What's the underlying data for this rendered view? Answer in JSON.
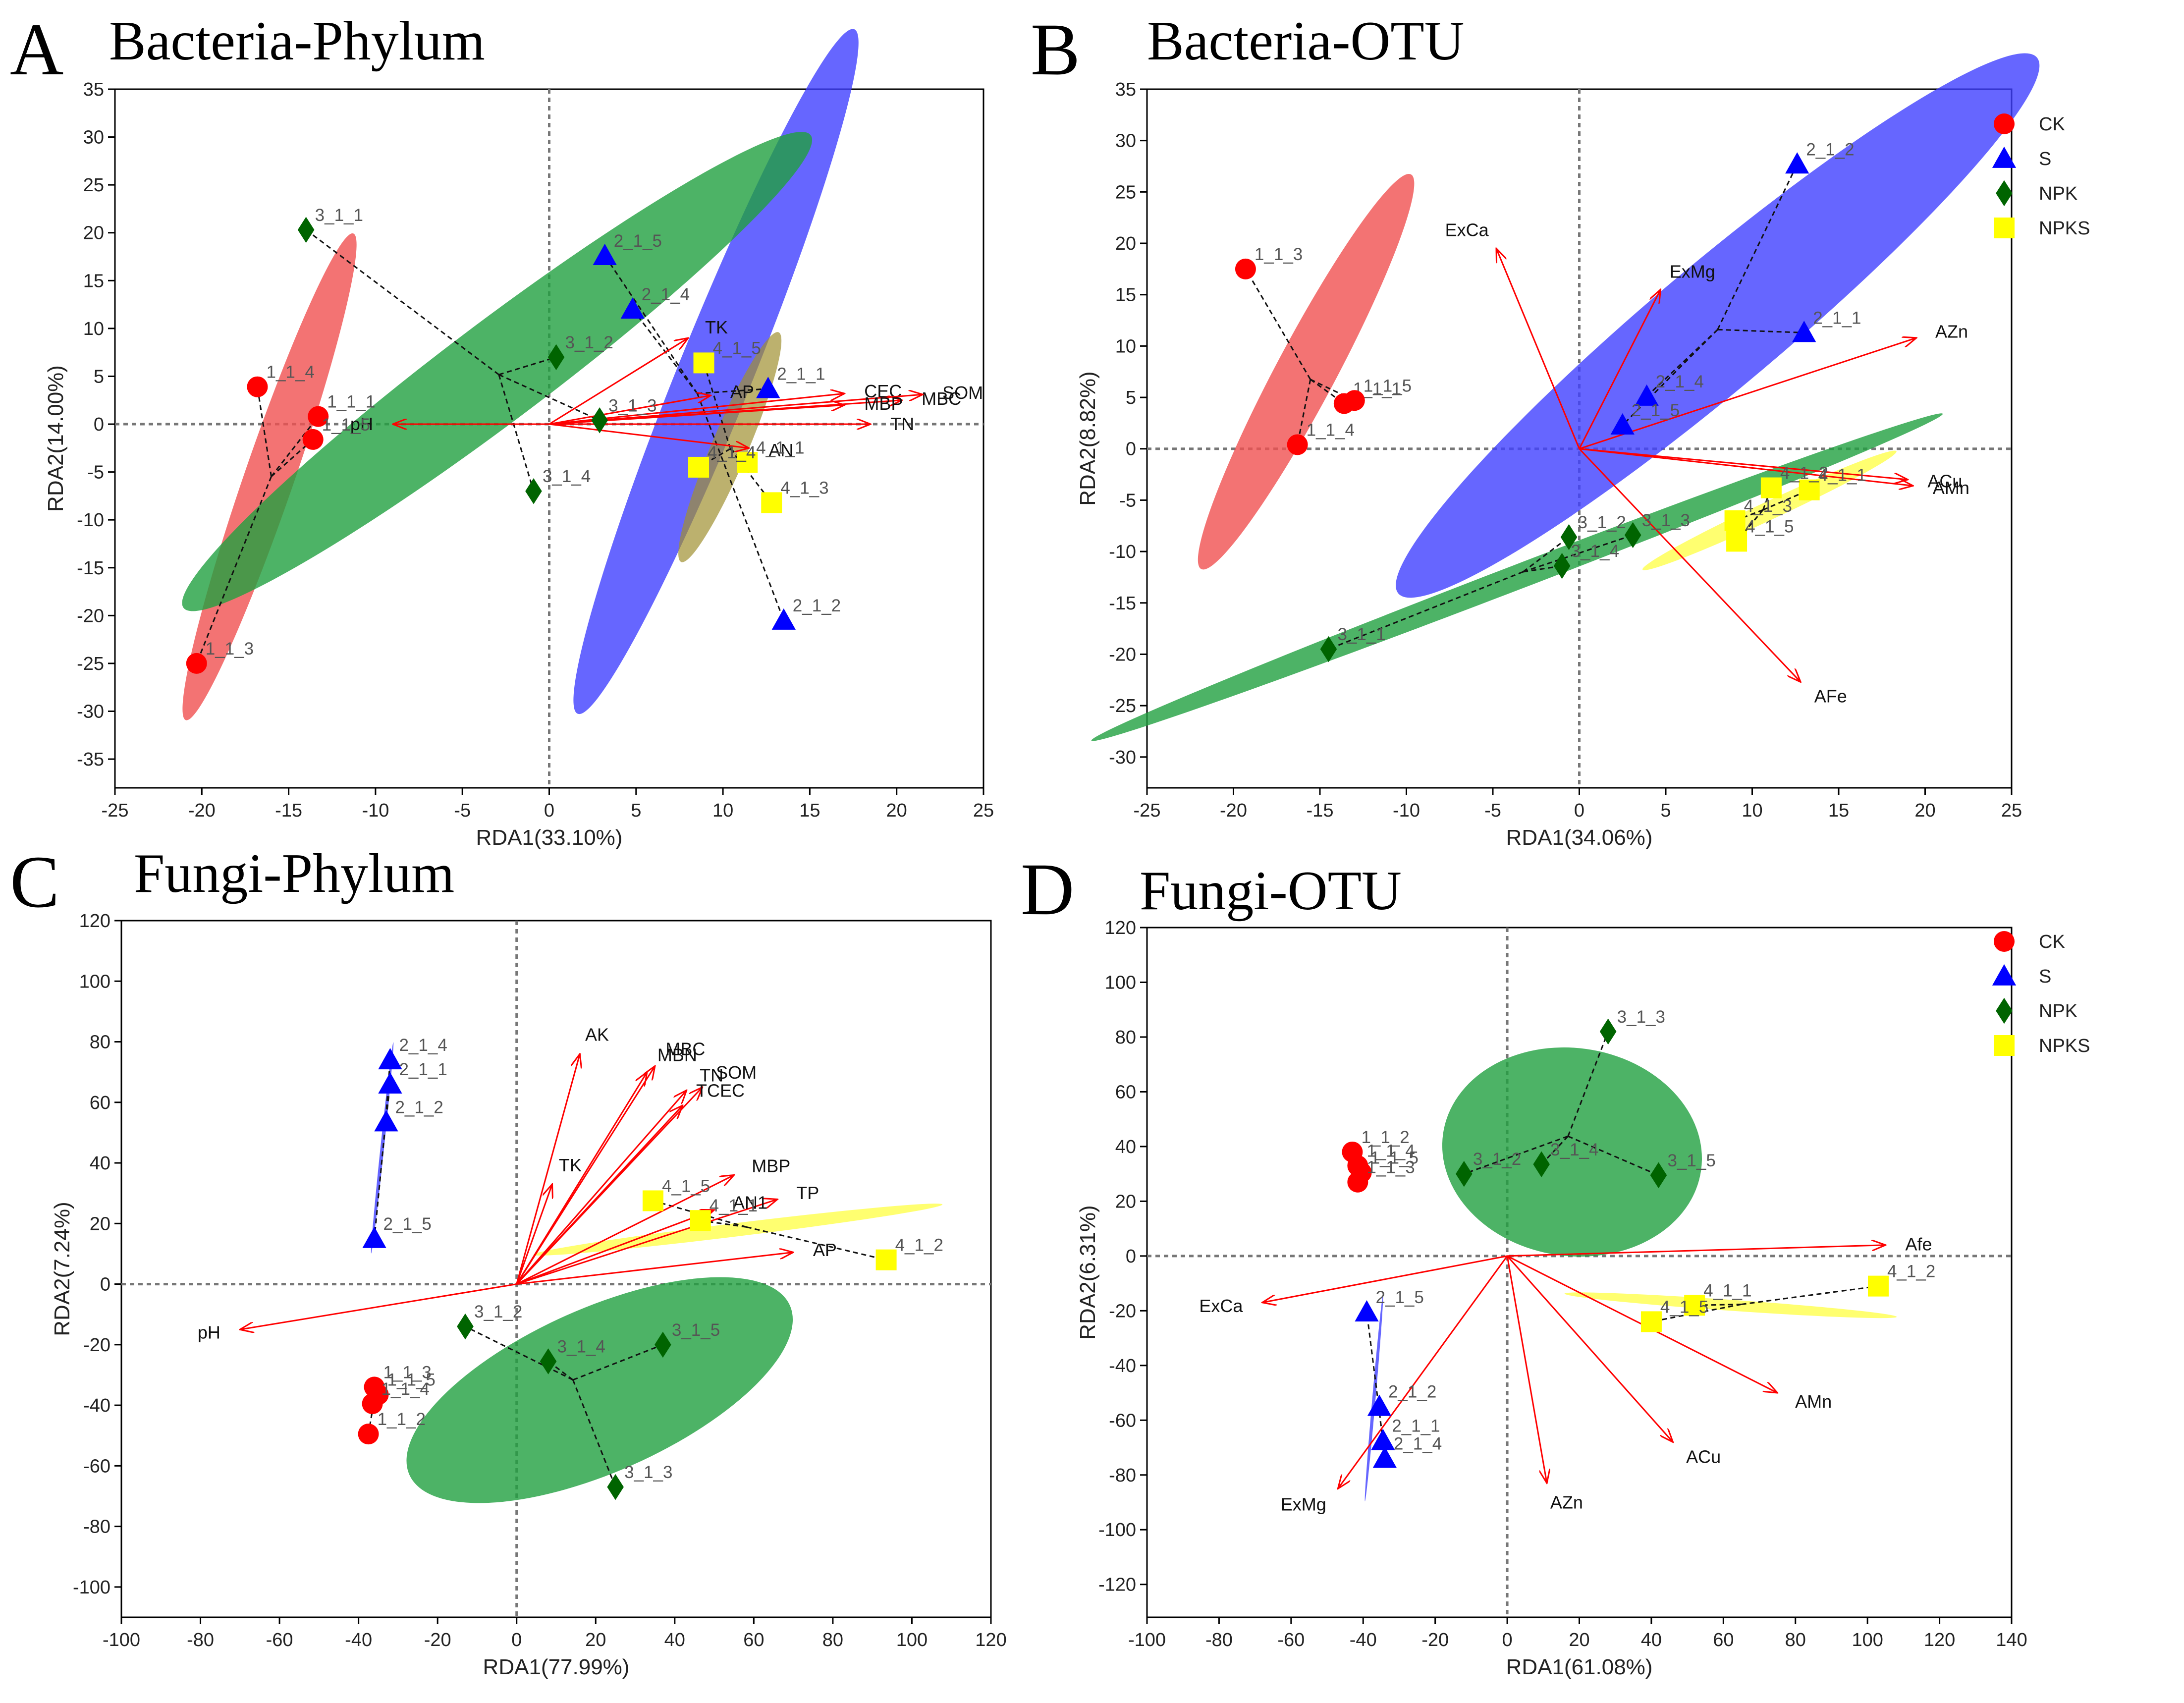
{
  "figure": {
    "description_free": true
  },
  "legend": {
    "entries": [
      {
        "name": "CK",
        "color": "#ff0000",
        "marker": "circle"
      },
      {
        "name": "S",
        "color": "#0000ff",
        "marker": "triangle"
      },
      {
        "name": "NPK",
        "color": "#006400",
        "marker": "diamond"
      },
      {
        "name": "NPKS",
        "color": "#ffff00",
        "marker": "square"
      }
    ]
  },
  "colors": {
    "arrow": "#ff0000",
    "CK_fill": "#f05050",
    "S_fill": "#4040ff",
    "NPK_fill": "#20a040",
    "NPKS_fill_A": "#a09030",
    "NPKS_fill": "#ffff33"
  },
  "chart_data": [
    {
      "type": "scatter",
      "panel": "A",
      "title": "Bacteria-Phylum",
      "xlabel": "RDA1(33.10%)",
      "ylabel": "RDA2(14.00%)",
      "xlim": [
        -25,
        25
      ],
      "ylim": [
        -38,
        35
      ],
      "xticks": [
        -25,
        -20,
        -15,
        -10,
        -5,
        0,
        5,
        10,
        15,
        20,
        25
      ],
      "yticks": [
        -35,
        -30,
        -25,
        -20,
        -15,
        -10,
        -5,
        0,
        5,
        10,
        15,
        20,
        25,
        30,
        35
      ],
      "show_legend": false,
      "groups": [
        {
          "name": "CK",
          "points": [
            {
              "label": "1_1_1",
              "x": -13.3,
              "y": 0.8
            },
            {
              "label": "1_1_3",
              "x": -20.3,
              "y": -25.0
            },
            {
              "label": "1_1_4",
              "x": -16.8,
              "y": 3.9
            },
            {
              "label": "1_1_5",
              "x": -13.6,
              "y": -1.6
            }
          ],
          "ellipse": {
            "cx": -16.1,
            "cy": -5.5,
            "rx": 17.5,
            "ry": 2.6,
            "angle": -71
          }
        },
        {
          "name": "S",
          "points": [
            {
              "label": "2_1_1",
              "x": 12.6,
              "y": 3.7
            },
            {
              "label": "2_1_2",
              "x": 13.5,
              "y": -20.5
            },
            {
              "label": "2_1_4",
              "x": 4.8,
              "y": 12.0
            },
            {
              "label": "2_1_5",
              "x": 3.2,
              "y": 17.6
            }
          ],
          "ellipse": {
            "cx": 9.6,
            "cy": 5.5,
            "rx": 24.0,
            "ry": 3.9,
            "angle": -68
          }
        },
        {
          "name": "NPK",
          "points": [
            {
              "label": "3_1_1",
              "x": -14.0,
              "y": 20.3
            },
            {
              "label": "3_1_2",
              "x": 0.4,
              "y": 7.0
            },
            {
              "label": "3_1_3",
              "x": 2.9,
              "y": 0.4
            },
            {
              "label": "3_1_4",
              "x": -0.9,
              "y": -7.0
            }
          ],
          "ellipse": {
            "cx": -3.0,
            "cy": 5.5,
            "rx": 20.0,
            "ry": 5.2,
            "angle": -37
          }
        },
        {
          "name": "NPKS",
          "points": [
            {
              "label": "4_1_5",
              "x": 8.9,
              "y": 6.4
            },
            {
              "label": "4_1_1",
              "x": 11.4,
              "y": -4.0
            },
            {
              "label": "4_1_3",
              "x": 12.8,
              "y": -8.2
            },
            {
              "label": "4_1_4",
              "x": 8.6,
              "y": -4.5
            }
          ],
          "ellipse": {
            "cx": 10.4,
            "cy": -2.4,
            "rx": 8.0,
            "ry": 1.9,
            "angle": -67
          }
        }
      ],
      "vectors": [
        {
          "label": "pH",
          "x": -9.0,
          "y": 0.0
        },
        {
          "label": "TK",
          "x": 8.0,
          "y": 9.0
        },
        {
          "label": "AP",
          "x": 9.3,
          "y": 3.0
        },
        {
          "label": "CEC",
          "x": 17.0,
          "y": 3.2
        },
        {
          "label": "MBC",
          "x": 20.3,
          "y": 2.5
        },
        {
          "label": "SOM",
          "x": 21.5,
          "y": 3.1
        },
        {
          "label": "MBP",
          "x": 17.0,
          "y": 2.0
        },
        {
          "label": "TN",
          "x": 18.5,
          "y": 0.0
        },
        {
          "label": "AN",
          "x": 11.5,
          "y": -2.5
        }
      ]
    },
    {
      "type": "scatter",
      "panel": "B",
      "title": "Bacteria-OTU",
      "xlabel": "RDA1(34.06%)",
      "ylabel": "RDA2(8.82%)",
      "xlim": [
        -25,
        25
      ],
      "ylim": [
        -33,
        35
      ],
      "xticks": [
        -25,
        -20,
        -15,
        -10,
        -5,
        0,
        5,
        10,
        15,
        20,
        25
      ],
      "yticks": [
        -30,
        -25,
        -20,
        -15,
        -10,
        -5,
        0,
        5,
        10,
        15,
        20,
        25,
        30,
        35
      ],
      "show_legend": true,
      "groups": [
        {
          "name": "CK",
          "points": [
            {
              "label": "1_1_3",
              "x": -19.3,
              "y": 17.5
            },
            {
              "label": "1_1_4",
              "x": -16.3,
              "y": 0.4
            },
            {
              "label": "1_1_1",
              "x": -13.6,
              "y": 4.4
            },
            {
              "label": "1_1_5",
              "x": -13.0,
              "y": 4.7
            }
          ],
          "ellipse": {
            "cx": -15.8,
            "cy": 7.5,
            "rx": 13.0,
            "ry": 2.9,
            "angle": -62
          }
        },
        {
          "name": "S",
          "points": [
            {
              "label": "2_1_2",
              "x": 12.6,
              "y": 27.7
            },
            {
              "label": "2_1_1",
              "x": 13.0,
              "y": 11.3
            },
            {
              "label": "2_1_4",
              "x": 3.9,
              "y": 5.1
            },
            {
              "label": "2_1_5",
              "x": 2.5,
              "y": 2.3
            }
          ],
          "ellipse": {
            "cx": 8.0,
            "cy": 12.0,
            "rx": 21.0,
            "ry": 6.1,
            "angle": -40
          }
        },
        {
          "name": "NPK",
          "points": [
            {
              "label": "3_1_1",
              "x": -14.5,
              "y": -19.5
            },
            {
              "label": "3_1_2",
              "x": -0.6,
              "y": -8.6
            },
            {
              "label": "3_1_3",
              "x": 3.1,
              "y": -8.4
            },
            {
              "label": "3_1_4",
              "x": -1.0,
              "y": -11.4
            }
          ],
          "ellipse": {
            "cx": -3.6,
            "cy": -12.5,
            "rx": 23.0,
            "ry": 1.2,
            "angle": -21
          }
        },
        {
          "name": "NPKS",
          "points": [
            {
              "label": "4_1_1",
              "x": 13.3,
              "y": -4.0
            },
            {
              "label": "4_1_2",
              "x": 11.1,
              "y": -3.8
            },
            {
              "label": "4_1_3",
              "x": 9.0,
              "y": -7.0
            },
            {
              "label": "4_1_5",
              "x": 9.1,
              "y": -9.0
            }
          ],
          "ellipse": {
            "cx": 11.0,
            "cy": -6.0,
            "rx": 7.0,
            "ry": 0.9,
            "angle": -25
          }
        }
      ],
      "vectors": [
        {
          "label": "ExCa",
          "x": -4.8,
          "y": 19.5
        },
        {
          "label": "ExMg",
          "x": 4.7,
          "y": 15.5
        },
        {
          "label": "AZn",
          "x": 19.5,
          "y": 10.8
        },
        {
          "label": "ACu",
          "x": 19.0,
          "y": -3.0
        },
        {
          "label": "AMn",
          "x": 19.3,
          "y": -3.6
        },
        {
          "label": "AFe",
          "x": 12.8,
          "y": -22.7
        }
      ]
    },
    {
      "type": "scatter",
      "panel": "C",
      "title": "Fungi-Phylum",
      "xlabel": "RDA1(77.99%)",
      "ylabel": "RDA2(7.24%)",
      "xlim": [
        -100,
        120
      ],
      "ylim": [
        -110,
        120
      ],
      "xticks": [
        -100,
        -80,
        -60,
        -40,
        -20,
        0,
        20,
        40,
        60,
        80,
        100,
        120
      ],
      "yticks": [
        -100,
        -80,
        -60,
        -40,
        -20,
        0,
        20,
        40,
        60,
        80,
        100,
        120
      ],
      "show_legend": false,
      "groups": [
        {
          "name": "CK",
          "points": [
            {
              "label": "1_1_3",
              "x": -36.0,
              "y": -34.0
            },
            {
              "label": "1_1_5",
              "x": -35.0,
              "y": -36.5
            },
            {
              "label": "1_1_4",
              "x": -36.5,
              "y": -39.5
            },
            {
              "label": "1_1_2",
              "x": -37.5,
              "y": -49.5
            }
          ],
          "ellipse": null
        },
        {
          "name": "S",
          "points": [
            {
              "label": "2_1_4",
              "x": -32.0,
              "y": 74.0
            },
            {
              "label": "2_1_1",
              "x": -32.0,
              "y": 66.0
            },
            {
              "label": "2_1_2",
              "x": -33.0,
              "y": 53.5
            },
            {
              "label": "2_1_5",
              "x": -36.0,
              "y": 15.0
            }
          ],
          "ellipse": {
            "cx": -34.0,
            "cy": 45.0,
            "rx": 31.0,
            "ry": 0.6,
            "angle": -84
          }
        },
        {
          "name": "NPK",
          "points": [
            {
              "label": "3_1_2",
              "x": -13.0,
              "y": -14.0
            },
            {
              "label": "3_1_4",
              "x": 8.0,
              "y": -25.5
            },
            {
              "label": "3_1_5",
              "x": 37.0,
              "y": -20.0
            },
            {
              "label": "3_1_3",
              "x": 25.0,
              "y": -67.0
            }
          ],
          "ellipse": {
            "cx": 21.0,
            "cy": -35.0,
            "rx": 43.0,
            "ry": 27.0,
            "angle": -24
          }
        },
        {
          "name": "NPKS",
          "points": [
            {
              "label": "4_1_5",
              "x": 34.5,
              "y": 27.5
            },
            {
              "label": "4_1_1",
              "x": 46.5,
              "y": 21.0
            },
            {
              "label": "4_1_2",
              "x": 93.5,
              "y": 8.0
            }
          ],
          "ellipse": {
            "cx": 56.0,
            "cy": 18.0,
            "rx": 48.0,
            "ry": 2.2,
            "angle": -7
          }
        }
      ],
      "vectors": [
        {
          "label": "pH",
          "x": -70.0,
          "y": -15.0
        },
        {
          "label": "AK",
          "x": 16.0,
          "y": 76.0
        },
        {
          "label": "MBC",
          "x": 35.0,
          "y": 72.0
        },
        {
          "label": "MBN",
          "x": 33.0,
          "y": 70.0
        },
        {
          "label": "TN",
          "x": 43.0,
          "y": 64.0
        },
        {
          "label": "SOM",
          "x": 47.0,
          "y": 65.0
        },
        {
          "label": "TCEC",
          "x": 42.0,
          "y": 59.0
        },
        {
          "label": "TK",
          "x": 9.0,
          "y": 33.0
        },
        {
          "label": "MBP",
          "x": 55.0,
          "y": 36.0
        },
        {
          "label": "TP",
          "x": 66.0,
          "y": 28.0
        },
        {
          "label": "AN1",
          "x": 50.0,
          "y": 24.5
        },
        {
          "label": "AP",
          "x": 70.0,
          "y": 10.5
        }
      ]
    },
    {
      "type": "scatter",
      "panel": "D",
      "title": "Fungi-OTU",
      "xlabel": "RDA1(61.08%)",
      "ylabel": "RDA2(6.31%)",
      "xlim": [
        -100,
        140
      ],
      "ylim": [
        -132,
        120
      ],
      "xticks": [
        -100,
        -80,
        -60,
        -40,
        -20,
        0,
        20,
        40,
        60,
        80,
        100,
        120,
        140
      ],
      "yticks": [
        -120,
        -100,
        -80,
        -60,
        -40,
        -20,
        0,
        20,
        40,
        60,
        80,
        100,
        120
      ],
      "show_legend": true,
      "groups": [
        {
          "name": "CK",
          "points": [
            {
              "label": "1_1_2",
              "x": -43.0,
              "y": 38.0
            },
            {
              "label": "1_1_4",
              "x": -41.5,
              "y": 33.0
            },
            {
              "label": "1_1_5",
              "x": -40.5,
              "y": 30.5
            },
            {
              "label": "1_1_3",
              "x": -41.5,
              "y": 27.0
            }
          ],
          "ellipse": null
        },
        {
          "name": "S",
          "points": [
            {
              "label": "2_1_5",
              "x": -39.0,
              "y": -20.5
            },
            {
              "label": "2_1_2",
              "x": -35.5,
              "y": -55.0
            },
            {
              "label": "2_1_1",
              "x": -34.5,
              "y": -67.5
            },
            {
              "label": "2_1_4",
              "x": -34.0,
              "y": -74.0
            }
          ],
          "ellipse": {
            "cx": -37.0,
            "cy": -52.0,
            "rx": 34.0,
            "ry": 0.6,
            "angle": -85
          }
        },
        {
          "name": "NPK",
          "points": [
            {
              "label": "3_1_3",
              "x": 28.0,
              "y": 82.0
            },
            {
              "label": "3_1_2",
              "x": -12.0,
              "y": 30.0
            },
            {
              "label": "3_1_4",
              "x": 9.5,
              "y": 33.5
            },
            {
              "label": "3_1_5",
              "x": 42.0,
              "y": 29.5
            }
          ],
          "ellipse": {
            "cx": 18.0,
            "cy": 38.0,
            "rx": 33.0,
            "ry": 38.0,
            "angle": 8
          }
        },
        {
          "name": "NPKS",
          "points": [
            {
              "label": "4_1_2",
              "x": 103.0,
              "y": -11.0
            },
            {
              "label": "4_1_1",
              "x": 52.0,
              "y": -18.0
            },
            {
              "label": "4_1_5",
              "x": 40.0,
              "y": -24.0
            }
          ],
          "ellipse": {
            "cx": 62.0,
            "cy": -18.0,
            "rx": 44.0,
            "ry": 2.0,
            "angle": 4
          }
        }
      ],
      "vectors": [
        {
          "label": "Afe",
          "x": 105.0,
          "y": 4.0
        },
        {
          "label": "ExCa",
          "x": -68.0,
          "y": -17.0
        },
        {
          "label": "ExMg",
          "x": -47.0,
          "y": -85.0
        },
        {
          "label": "AMn",
          "x": 75.0,
          "y": -50.0
        },
        {
          "label": "ACu",
          "x": 46.0,
          "y": -68.0
        },
        {
          "label": "AZn",
          "x": 11.0,
          "y": -83.0
        }
      ]
    }
  ]
}
